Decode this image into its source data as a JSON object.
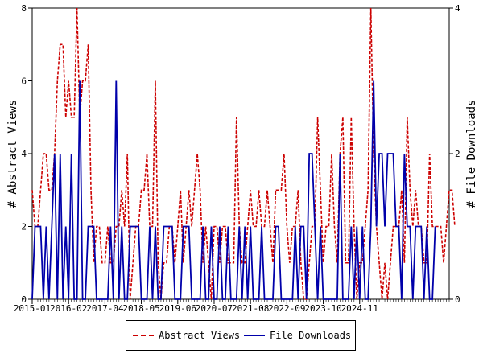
{
  "chart_data": {
    "type": "line",
    "title": "",
    "ylabel": "# Abstract Views",
    "y2label": "# File Downloads",
    "ylim": [
      0,
      8
    ],
    "y2lim": [
      0,
      4
    ],
    "yticks": [
      0,
      2,
      4,
      6,
      8
    ],
    "y2ticks": [
      0,
      2,
      4
    ],
    "xticks": [
      "2015-01",
      "2016-02",
      "2017-04",
      "2018-05",
      "2019-06",
      "2020-07",
      "2021-08",
      "2022-09",
      "2023-10",
      "2024-11"
    ],
    "xstart": "2015-01",
    "grid": false,
    "legend_position": "bottom",
    "colors": {
      "abstract_views": "#cc0000",
      "file_downloads": "#0000aa"
    },
    "series": [
      {
        "name": "Abstract Views",
        "axis": "left",
        "style": "dashed",
        "values": [
          3,
          2,
          2,
          3,
          4,
          4,
          3,
          3,
          4,
          6,
          7,
          7,
          5,
          6,
          5,
          5,
          8,
          5,
          6,
          6,
          7,
          3,
          1,
          2,
          2,
          1,
          1,
          2,
          1,
          1,
          2,
          2,
          3,
          2,
          4,
          0,
          1,
          2,
          2,
          3,
          3,
          4,
          2,
          2,
          6,
          1,
          0,
          1,
          1,
          2,
          2,
          1,
          2,
          3,
          1,
          2,
          3,
          2,
          3,
          4,
          3,
          1,
          2,
          1,
          0,
          2,
          2,
          1,
          2,
          2,
          1,
          1,
          1,
          5,
          2,
          1,
          1,
          2,
          3,
          2,
          2,
          3,
          2,
          2,
          3,
          2,
          1,
          3,
          3,
          3,
          4,
          2,
          1,
          2,
          2,
          3,
          1,
          0,
          0,
          1,
          2,
          2,
          5,
          3,
          1,
          2,
          2,
          4,
          2,
          1,
          4,
          5,
          1,
          1,
          5,
          2,
          0,
          1,
          1,
          2,
          3,
          8,
          4,
          2,
          1,
          0,
          1,
          0,
          1,
          2,
          2,
          2,
          3,
          1,
          5,
          3,
          2,
          3,
          2,
          2,
          1,
          1,
          4,
          2,
          2,
          2,
          2,
          1,
          2,
          3,
          3,
          2
        ]
      },
      {
        "name": "File Downloads",
        "axis": "right",
        "style": "solid",
        "values": [
          0,
          1,
          1,
          1,
          0,
          1,
          0,
          1,
          2,
          0,
          2,
          0,
          1,
          0,
          2,
          0,
          0,
          3,
          0,
          0,
          1,
          1,
          1,
          0,
          0,
          0,
          0,
          0,
          1,
          0,
          3,
          0,
          1,
          0,
          0,
          1,
          1,
          1,
          1,
          0,
          0,
          0,
          1,
          0,
          1,
          0,
          0,
          1,
          1,
          1,
          1,
          0,
          0,
          0,
          1,
          1,
          1,
          0,
          0,
          0,
          0,
          1,
          0,
          0,
          1,
          0,
          0,
          1,
          0,
          0,
          1,
          0,
          0,
          0,
          1,
          0,
          1,
          0,
          1,
          0,
          0,
          0,
          1,
          0,
          0,
          0,
          0,
          1,
          1,
          0,
          0,
          0,
          0,
          0,
          1,
          0,
          1,
          1,
          0,
          2,
          2,
          1,
          0,
          1,
          0,
          0,
          0,
          0,
          0,
          0,
          2,
          0,
          0,
          0,
          1,
          0,
          1,
          0,
          1,
          0,
          0,
          1,
          3,
          1,
          2,
          2,
          1,
          2,
          2,
          2,
          1,
          1,
          0,
          2,
          1,
          1,
          0,
          1,
          1,
          1,
          0,
          1,
          0,
          0,
          1
        ]
      }
    ]
  }
}
